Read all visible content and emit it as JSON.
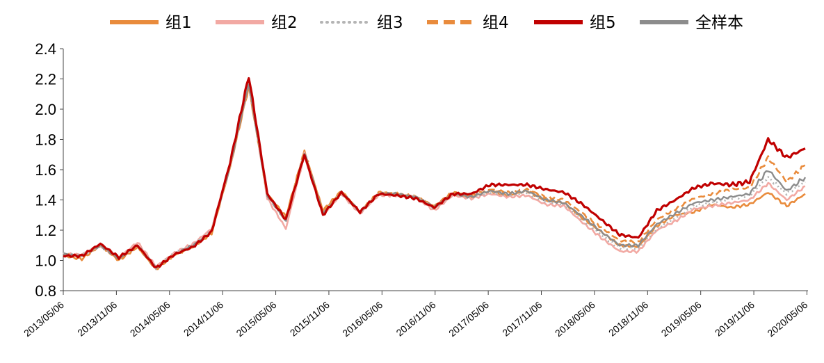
{
  "chart_data": {
    "type": "line",
    "ylim": [
      0.8,
      2.4
    ],
    "yticks": [
      "0.8",
      "1.0",
      "1.2",
      "1.4",
      "1.6",
      "1.8",
      "2.0",
      "2.2",
      "2.4"
    ],
    "xticks": [
      "2013/05/06",
      "2013/11/06",
      "2014/05/06",
      "2014/11/06",
      "2015/05/06",
      "2015/11/06",
      "2016/05/06",
      "2016/11/06",
      "2017/05/06",
      "2017/11/06",
      "2018/05/06",
      "2018/11/06",
      "2019/05/06",
      "2019/11/06",
      "2020/05/06"
    ],
    "grid": false,
    "legend_position": "top",
    "series": [
      {
        "name": "组1",
        "color": "#E98B3C",
        "dash": "solid",
        "values": [
          1.03,
          1.01,
          1.1,
          1.0,
          1.09,
          0.94,
          1.04,
          1.09,
          1.18,
          1.62,
          2.15,
          1.44,
          1.29,
          1.72,
          1.33,
          1.46,
          1.32,
          1.45,
          1.44,
          1.42,
          1.36,
          1.45,
          1.42,
          1.46,
          1.43,
          1.46,
          1.4,
          1.38,
          1.28,
          1.19,
          1.1,
          1.09,
          1.23,
          1.3,
          1.32,
          1.37,
          1.35,
          1.37,
          1.45,
          1.36,
          1.44
        ]
      },
      {
        "name": "组2",
        "color": "#F2A9A3",
        "dash": "solid",
        "values": [
          1.04,
          1.04,
          1.1,
          1.02,
          1.12,
          0.96,
          1.05,
          1.11,
          1.21,
          1.64,
          2.18,
          1.41,
          1.21,
          1.7,
          1.3,
          1.44,
          1.31,
          1.43,
          1.43,
          1.42,
          1.33,
          1.43,
          1.41,
          1.44,
          1.42,
          1.43,
          1.37,
          1.36,
          1.25,
          1.15,
          1.06,
          1.06,
          1.2,
          1.26,
          1.34,
          1.36,
          1.38,
          1.4,
          1.51,
          1.4,
          1.49
        ]
      },
      {
        "name": "组3",
        "color": "#B4B4B4",
        "dash": "dot",
        "values": [
          1.05,
          1.03,
          1.1,
          1.02,
          1.1,
          0.95,
          1.05,
          1.1,
          1.2,
          1.63,
          2.17,
          1.43,
          1.26,
          1.71,
          1.31,
          1.45,
          1.32,
          1.44,
          1.44,
          1.42,
          1.35,
          1.44,
          1.42,
          1.45,
          1.43,
          1.45,
          1.39,
          1.37,
          1.27,
          1.17,
          1.08,
          1.08,
          1.21,
          1.28,
          1.36,
          1.38,
          1.41,
          1.43,
          1.55,
          1.44,
          1.52
        ]
      },
      {
        "name": "组4",
        "color": "#E98B3C",
        "dash": "dash",
        "values": [
          1.04,
          1.03,
          1.1,
          1.01,
          1.09,
          0.95,
          1.04,
          1.09,
          1.19,
          1.63,
          2.16,
          1.43,
          1.28,
          1.72,
          1.32,
          1.45,
          1.32,
          1.44,
          1.44,
          1.42,
          1.35,
          1.44,
          1.43,
          1.47,
          1.45,
          1.47,
          1.42,
          1.4,
          1.31,
          1.22,
          1.13,
          1.12,
          1.27,
          1.34,
          1.41,
          1.44,
          1.47,
          1.48,
          1.68,
          1.52,
          1.63
        ]
      },
      {
        "name": "组5",
        "color": "#C00000",
        "dash": "solid",
        "values": [
          1.03,
          1.03,
          1.11,
          1.02,
          1.1,
          0.95,
          1.04,
          1.09,
          1.19,
          1.65,
          2.22,
          1.44,
          1.27,
          1.7,
          1.3,
          1.45,
          1.32,
          1.44,
          1.43,
          1.41,
          1.35,
          1.44,
          1.44,
          1.5,
          1.5,
          1.5,
          1.47,
          1.45,
          1.37,
          1.27,
          1.17,
          1.15,
          1.33,
          1.4,
          1.48,
          1.51,
          1.5,
          1.52,
          1.8,
          1.68,
          1.74
        ]
      },
      {
        "name": "全样本",
        "color": "#8C8C8C",
        "dash": "solid",
        "values": [
          1.04,
          1.03,
          1.1,
          1.01,
          1.1,
          0.95,
          1.04,
          1.1,
          1.19,
          1.63,
          2.17,
          1.43,
          1.26,
          1.71,
          1.31,
          1.45,
          1.32,
          1.44,
          1.44,
          1.42,
          1.35,
          1.44,
          1.42,
          1.46,
          1.44,
          1.46,
          1.4,
          1.38,
          1.29,
          1.19,
          1.1,
          1.1,
          1.24,
          1.31,
          1.38,
          1.4,
          1.42,
          1.44,
          1.6,
          1.46,
          1.55
        ]
      }
    ]
  }
}
